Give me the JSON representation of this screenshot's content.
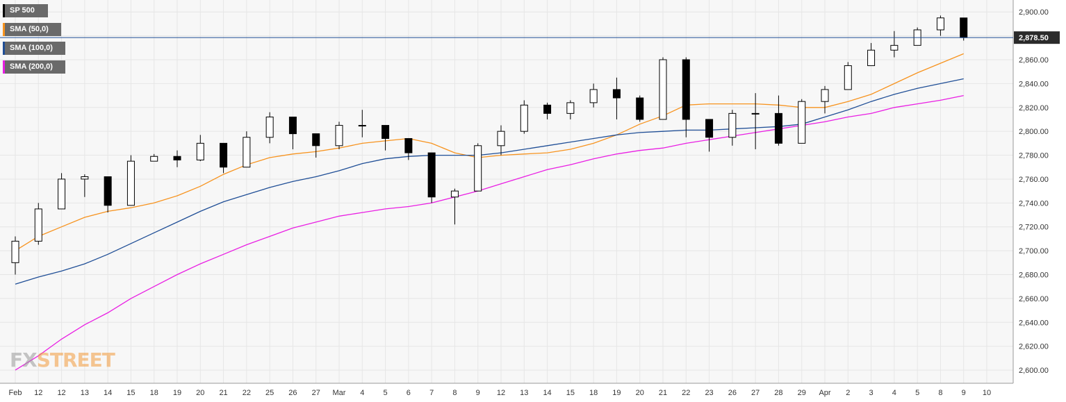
{
  "legend": [
    {
      "label": "SP 500",
      "color": "#000000"
    },
    {
      "label": "SMA (50,0)",
      "color": "#f7931e"
    },
    {
      "label": "SMA (100,0)",
      "color": "#1f4e96"
    },
    {
      "label": "SMA (200,0)",
      "color": "#e91ee3"
    }
  ],
  "logo": {
    "fx": "FX",
    "street": "STREET"
  },
  "chart_data": {
    "type": "candlestick",
    "title": "",
    "xlabel": "",
    "ylabel": "",
    "ylim": [
      2589,
      2910
    ],
    "y_ticks": [
      "2,600.00",
      "2,620.00",
      "2,640.00",
      "2,660.00",
      "2,680.00",
      "2,700.00",
      "2,720.00",
      "2,740.00",
      "2,760.00",
      "2,780.00",
      "2,800.00",
      "2,820.00",
      "2,840.00",
      "2,860.00",
      "2,880.00",
      "2,900.00"
    ],
    "y_tick_values": [
      2600,
      2620,
      2640,
      2660,
      2680,
      2700,
      2720,
      2740,
      2760,
      2780,
      2800,
      2820,
      2840,
      2860,
      2880,
      2900
    ],
    "x_ticks": [
      "Feb",
      "12",
      "12",
      "13",
      "14",
      "15",
      "18",
      "19",
      "20",
      "21",
      "22",
      "25",
      "26",
      "27",
      "Mar",
      "4",
      "5",
      "6",
      "7",
      "8",
      "9",
      "12",
      "13",
      "14",
      "15",
      "18",
      "19",
      "20",
      "21",
      "22",
      "23",
      "26",
      "27",
      "28",
      "29",
      "Apr",
      "2",
      "3",
      "4",
      "5",
      "8",
      "9",
      "10"
    ],
    "last_price": 2878.5,
    "last_price_label": "2,878.50",
    "grid": true,
    "series": [
      {
        "name": "SP 500",
        "type": "candlestick",
        "x": [
          "Feb",
          "12",
          "12",
          "13",
          "14",
          "15",
          "18",
          "19",
          "20",
          "21",
          "22",
          "25",
          "26",
          "27",
          "Mar",
          "4",
          "5",
          "6",
          "7",
          "8",
          "9",
          "12",
          "13",
          "14",
          "15",
          "18",
          "19",
          "20",
          "21",
          "22",
          "23",
          "26",
          "27",
          "28",
          "29",
          "Apr",
          "2",
          "3",
          "4",
          "5",
          "8",
          "9"
        ],
        "close": [
          2708,
          2735,
          2760,
          2762,
          2738,
          2775,
          2779,
          2776,
          2790,
          2770,
          2795,
          2812,
          2798,
          2788,
          2805,
          2805,
          2794,
          2782,
          2745,
          2750,
          2788,
          2800,
          2822,
          2815,
          2824,
          2835,
          2828,
          2810,
          2860,
          2810,
          2795,
          2815,
          2815,
          2790,
          2825,
          2835,
          2855,
          2868,
          2872,
          2885,
          2895,
          2878.5
        ],
        "high": [
          2712,
          2740,
          2765,
          2764,
          2745,
          2780,
          2781,
          2784,
          2797,
          2790,
          2800,
          2816,
          2804,
          2794,
          2808,
          2818,
          2800,
          2790,
          2770,
          2752,
          2790,
          2805,
          2826,
          2824,
          2826,
          2840,
          2845,
          2830,
          2862,
          2862,
          2810,
          2818,
          2832,
          2830,
          2827,
          2838,
          2858,
          2874,
          2884,
          2887,
          2897,
          2895
        ],
        "low": [
          2680,
          2705,
          2736,
          2745,
          2732,
          2740,
          2775,
          2770,
          2775,
          2765,
          2780,
          2790,
          2785,
          2778,
          2785,
          2795,
          2784,
          2776,
          2740,
          2722,
          2750,
          2780,
          2798,
          2810,
          2810,
          2820,
          2810,
          2808,
          2810,
          2795,
          2783,
          2788,
          2785,
          2788,
          2797,
          2815,
          2848,
          2858,
          2862,
          2875,
          2880,
          2876
        ]
      },
      {
        "name": "SMA (50,0)",
        "x": [
          "Feb",
          "12",
          "12",
          "13",
          "14",
          "15",
          "18",
          "19",
          "20",
          "21",
          "22",
          "25",
          "26",
          "27",
          "Mar",
          "4",
          "5",
          "6",
          "7",
          "8",
          "9",
          "12",
          "13",
          "14",
          "15",
          "18",
          "19",
          "20",
          "21",
          "22",
          "23",
          "26",
          "27",
          "28",
          "29",
          "Apr",
          "2",
          "3",
          "4",
          "5",
          "8",
          "9"
        ],
        "values": [
          2700,
          2712,
          2720,
          2728,
          2733,
          2736,
          2740,
          2746,
          2754,
          2764,
          2772,
          2778,
          2781,
          2783,
          2786,
          2790,
          2792,
          2794,
          2790,
          2782,
          2778,
          2780,
          2781,
          2782,
          2785,
          2790,
          2797,
          2806,
          2813,
          2822,
          2823,
          2823,
          2823,
          2822,
          2820,
          2820,
          2825,
          2831,
          2840,
          2849,
          2857,
          2865
        ]
      },
      {
        "name": "SMA (100,0)",
        "x": [
          "Feb",
          "12",
          "12",
          "13",
          "14",
          "15",
          "18",
          "19",
          "20",
          "21",
          "22",
          "25",
          "26",
          "27",
          "Mar",
          "4",
          "5",
          "6",
          "7",
          "8",
          "9",
          "12",
          "13",
          "14",
          "15",
          "18",
          "19",
          "20",
          "21",
          "22",
          "23",
          "26",
          "27",
          "28",
          "29",
          "Apr",
          "2",
          "3",
          "4",
          "5",
          "8",
          "9"
        ],
        "values": [
          2672,
          2678,
          2683,
          2689,
          2697,
          2706,
          2715,
          2724,
          2733,
          2741,
          2747,
          2753,
          2758,
          2762,
          2767,
          2773,
          2777,
          2779,
          2780,
          2780,
          2780,
          2782,
          2785,
          2788,
          2791,
          2794,
          2797,
          2799,
          2800,
          2801,
          2801,
          2802,
          2803,
          2804,
          2806,
          2812,
          2818,
          2825,
          2831,
          2836,
          2840,
          2844
        ]
      },
      {
        "name": "SMA (200,0)",
        "x": [
          "Feb",
          "12",
          "12",
          "13",
          "14",
          "15",
          "18",
          "19",
          "20",
          "21",
          "22",
          "25",
          "26",
          "27",
          "Mar",
          "4",
          "5",
          "6",
          "7",
          "8",
          "9",
          "12",
          "13",
          "14",
          "15",
          "18",
          "19",
          "20",
          "21",
          "22",
          "23",
          "26",
          "27",
          "28",
          "29",
          "Apr",
          "2",
          "3",
          "4",
          "5",
          "8",
          "9"
        ],
        "values": [
          2600,
          2612,
          2626,
          2638,
          2648,
          2660,
          2670,
          2680,
          2689,
          2697,
          2705,
          2712,
          2719,
          2724,
          2729,
          2732,
          2735,
          2737,
          2740,
          2745,
          2750,
          2756,
          2762,
          2768,
          2772,
          2777,
          2781,
          2784,
          2786,
          2790,
          2793,
          2796,
          2799,
          2802,
          2805,
          2808,
          2812,
          2815,
          2820,
          2823,
          2826,
          2830
        ]
      }
    ]
  }
}
